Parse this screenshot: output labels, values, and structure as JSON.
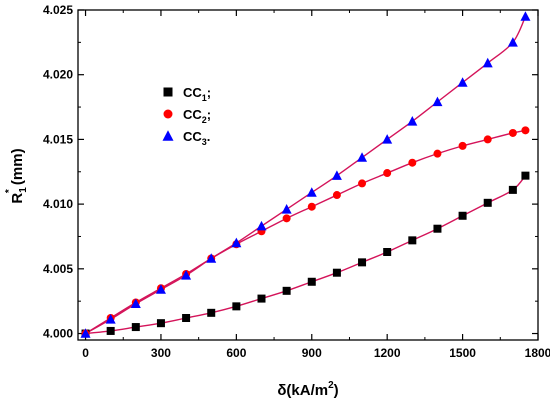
{
  "chart_data": {
    "type": "scatter",
    "xlabel": {
      "main": "δ(kA/m",
      "sup": "2",
      "tail": ")"
    },
    "ylabel": {
      "main": "R",
      "sub": "1",
      "sup": "*",
      "tail": " (mm)"
    },
    "xlim": [
      -30,
      1800
    ],
    "ylim": [
      3.9995,
      4.025
    ],
    "xticks": [
      0,
      300,
      600,
      900,
      1200,
      1500,
      1800
    ],
    "xtick_labels": [
      "0",
      "300",
      "600",
      "900",
      "1200",
      "1500",
      "1800"
    ],
    "yticks": [
      4.0,
      4.005,
      4.01,
      4.015,
      4.02,
      4.025
    ],
    "ytick_labels": [
      "4.000",
      "4.005",
      "4.010",
      "4.015",
      "4.020",
      "4.025"
    ],
    "legend_position": "top-left",
    "fit_line_color": "#d4145a",
    "series": [
      {
        "name": "CC1;",
        "legend": {
          "main": "CC",
          "sub": "1",
          "tail": ";"
        },
        "marker": "square",
        "color": "#000000",
        "x": [
          0,
          100,
          200,
          300,
          400,
          500,
          600,
          700,
          800,
          900,
          1000,
          1100,
          1200,
          1300,
          1400,
          1500,
          1600,
          1700,
          1750
        ],
        "y": [
          4.0,
          4.0002,
          4.0005,
          4.0008,
          4.0012,
          4.0016,
          4.0021,
          4.0027,
          4.0033,
          4.004,
          4.0047,
          4.0055,
          4.0063,
          4.0072,
          4.0081,
          4.0091,
          4.0101,
          4.0111,
          4.0122
        ]
      },
      {
        "name": "CC2;",
        "legend": {
          "main": "CC",
          "sub": "2",
          "tail": ";"
        },
        "marker": "circle",
        "color": "#ff0000",
        "x": [
          0,
          100,
          200,
          300,
          400,
          500,
          600,
          700,
          800,
          900,
          1000,
          1100,
          1200,
          1300,
          1400,
          1500,
          1600,
          1700,
          1750
        ],
        "y": [
          4.0,
          4.0012,
          4.0024,
          4.0035,
          4.0046,
          4.0058,
          4.0069,
          4.0079,
          4.0089,
          4.0098,
          4.0107,
          4.0116,
          4.0124,
          4.0132,
          4.0139,
          4.0145,
          4.015,
          4.0155,
          4.0157
        ]
      },
      {
        "name": "CC3.",
        "legend": {
          "main": "CC",
          "sub": "3",
          "tail": "."
        },
        "marker": "triangle",
        "color": "#0000ff",
        "x": [
          0,
          100,
          200,
          300,
          400,
          500,
          600,
          700,
          800,
          900,
          1000,
          1100,
          1200,
          1300,
          1400,
          1500,
          1600,
          1700,
          1750
        ],
        "y": [
          4.0,
          4.0011,
          4.0023,
          4.0034,
          4.0045,
          4.0058,
          4.007,
          4.0083,
          4.0096,
          4.0109,
          4.0122,
          4.0136,
          4.015,
          4.0164,
          4.0179,
          4.0194,
          4.0209,
          4.0225,
          4.0245
        ]
      }
    ]
  }
}
